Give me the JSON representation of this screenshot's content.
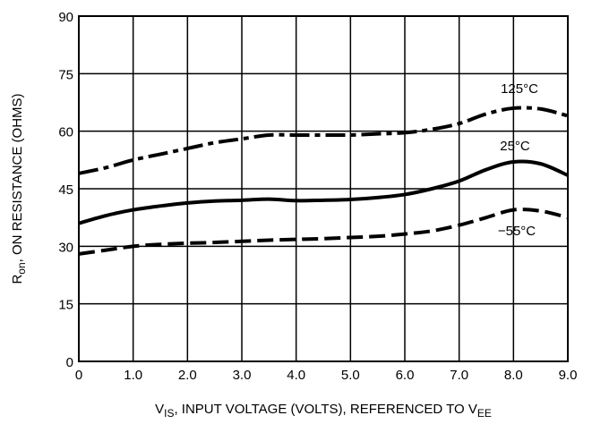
{
  "chart_data": {
    "type": "line",
    "title": "",
    "xlabel": {
      "main": "V",
      "sub": "IS",
      "rest": ", INPUT VOLTAGE (VOLTS), REFERENCED TO V",
      "sub2": "EE"
    },
    "ylabel": {
      "main": "R",
      "sub": "on",
      "rest": ", ON RESISTANCE (OHMS)"
    },
    "xlim": [
      0,
      9
    ],
    "ylim": [
      0,
      90
    ],
    "xticks": [
      "0",
      "1.0",
      "2.0",
      "3.0",
      "4.0",
      "5.0",
      "6.0",
      "7.0",
      "8.0",
      "9.0"
    ],
    "yticks": [
      "0",
      "15",
      "30",
      "45",
      "60",
      "75",
      "90"
    ],
    "grid": true,
    "series": [
      {
        "name": "125°C",
        "dash": "dash-dot",
        "x": [
          0,
          0.5,
          1.0,
          1.5,
          2.0,
          2.5,
          3.0,
          3.5,
          4.0,
          4.5,
          5.0,
          5.5,
          6.0,
          6.5,
          7.0,
          7.5,
          8.0,
          8.5,
          9.0
        ],
        "y": [
          49,
          50.5,
          52.5,
          54,
          55.5,
          57,
          58,
          59,
          59,
          59,
          59,
          59.3,
          59.6,
          60.5,
          62,
          64.5,
          66,
          65.8,
          64
        ]
      },
      {
        "name": "25°C",
        "dash": "solid",
        "x": [
          0,
          0.5,
          1.0,
          1.5,
          2.0,
          2.5,
          3.0,
          3.5,
          4.0,
          4.5,
          5.0,
          5.5,
          6.0,
          6.5,
          7.0,
          7.5,
          8.0,
          8.5,
          9.0
        ],
        "y": [
          36,
          38,
          39.5,
          40.5,
          41.3,
          41.8,
          42,
          42.3,
          41.9,
          42,
          42.2,
          42.7,
          43.5,
          45,
          47,
          50,
          52,
          51.5,
          48.5
        ]
      },
      {
        "name": "−55°C",
        "dash": "dashed",
        "x": [
          0,
          0.5,
          1.0,
          1.5,
          2.0,
          2.5,
          3.0,
          3.5,
          4.0,
          4.5,
          5.0,
          5.5,
          6.0,
          6.5,
          7.0,
          7.5,
          8.0,
          8.5,
          9.0
        ],
        "y": [
          28,
          29,
          30,
          30.5,
          30.8,
          31,
          31.3,
          31.6,
          31.8,
          32,
          32.3,
          32.6,
          33.2,
          34,
          35.5,
          37.5,
          39.5,
          39.2,
          37.5
        ]
      }
    ],
    "annotations": [
      "125°C",
      "25°C",
      "−55°C"
    ]
  }
}
